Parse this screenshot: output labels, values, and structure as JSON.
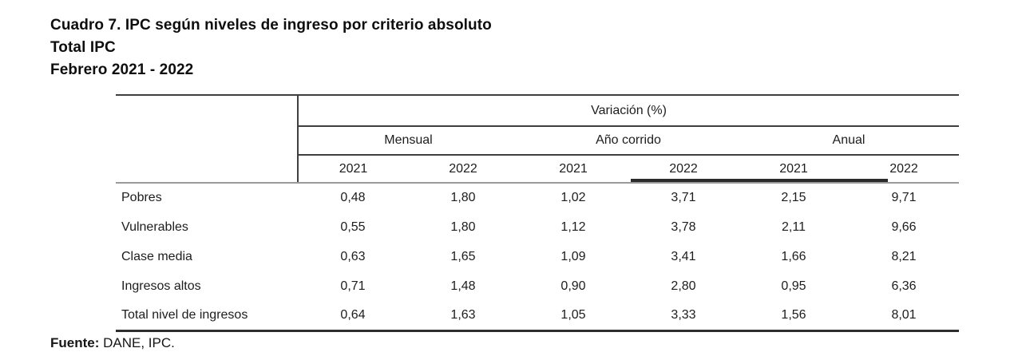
{
  "title": {
    "line1": "Cuadro 7. IPC según niveles de ingreso por criterio absoluto",
    "line2": "Total IPC",
    "line3": "Febrero 2021 - 2022"
  },
  "table": {
    "variation_header": "Variación (%)",
    "groups": [
      {
        "label": "Mensual"
      },
      {
        "label": "Año corrido"
      },
      {
        "label": "Anual"
      }
    ],
    "years": [
      "2021",
      "2022",
      "2021",
      "2022",
      "2021",
      "2022"
    ],
    "rows": [
      {
        "label": "Pobres",
        "values": [
          "0,48",
          "1,80",
          "1,02",
          "3,71",
          "2,15",
          "9,71"
        ]
      },
      {
        "label": "Vulnerables",
        "values": [
          "0,55",
          "1,80",
          "1,12",
          "3,78",
          "2,11",
          "9,66"
        ]
      },
      {
        "label": "Clase media",
        "values": [
          "0,63",
          "1,65",
          "1,09",
          "3,41",
          "1,66",
          "8,21"
        ]
      },
      {
        "label": "Ingresos altos",
        "values": [
          "0,71",
          "1,48",
          "0,90",
          "2,80",
          "0,95",
          "6,36"
        ]
      },
      {
        "label": "Total nivel de ingresos",
        "values": [
          "0,64",
          "1,63",
          "1,05",
          "3,33",
          "1,56",
          "8,01"
        ]
      }
    ]
  },
  "footer": {
    "source_label": "Fuente:",
    "source_text": "DANE, IPC."
  },
  "colors": {
    "text": "#1d1d1d",
    "rule_dark": "#3f3f3f",
    "rule_light": "#9a9a9a",
    "rule_bottom": "#2e2e2e",
    "background": "#ffffff"
  }
}
